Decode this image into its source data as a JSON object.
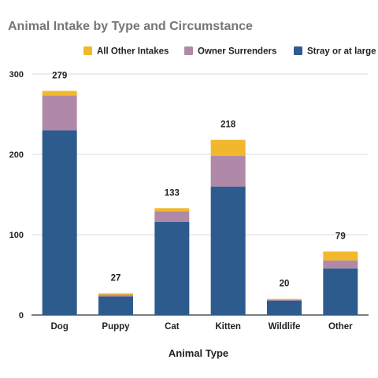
{
  "chart_data": {
    "type": "bar",
    "stacked": true,
    "title": "Animal Intake by Type and Circumstance",
    "xlabel": "Animal Type",
    "ylabel": "",
    "ylim": [
      0,
      300
    ],
    "yticks": [
      0,
      100,
      200,
      300
    ],
    "grid": true,
    "legend_position": "top",
    "categories": [
      "Dog",
      "Puppy",
      "Cat",
      "Kitten",
      "Wildlife",
      "Other"
    ],
    "series": [
      {
        "name": "Stray or at large",
        "color": "#2e5b8e",
        "values": [
          230,
          23,
          116,
          160,
          18,
          58
        ]
      },
      {
        "name": "Owner Surrenders",
        "color": "#b189a8",
        "values": [
          43,
          2,
          13,
          38,
          1,
          10
        ]
      },
      {
        "name": "All Other Intakes",
        "color": "#f1b82d",
        "values": [
          6,
          2,
          4,
          20,
          1,
          11
        ]
      }
    ],
    "totals": [
      "279",
      "27",
      "133",
      "218",
      "20",
      "79"
    ],
    "legend_order": [
      "All Other Intakes",
      "Owner Surrenders",
      "Stray or at large"
    ]
  }
}
